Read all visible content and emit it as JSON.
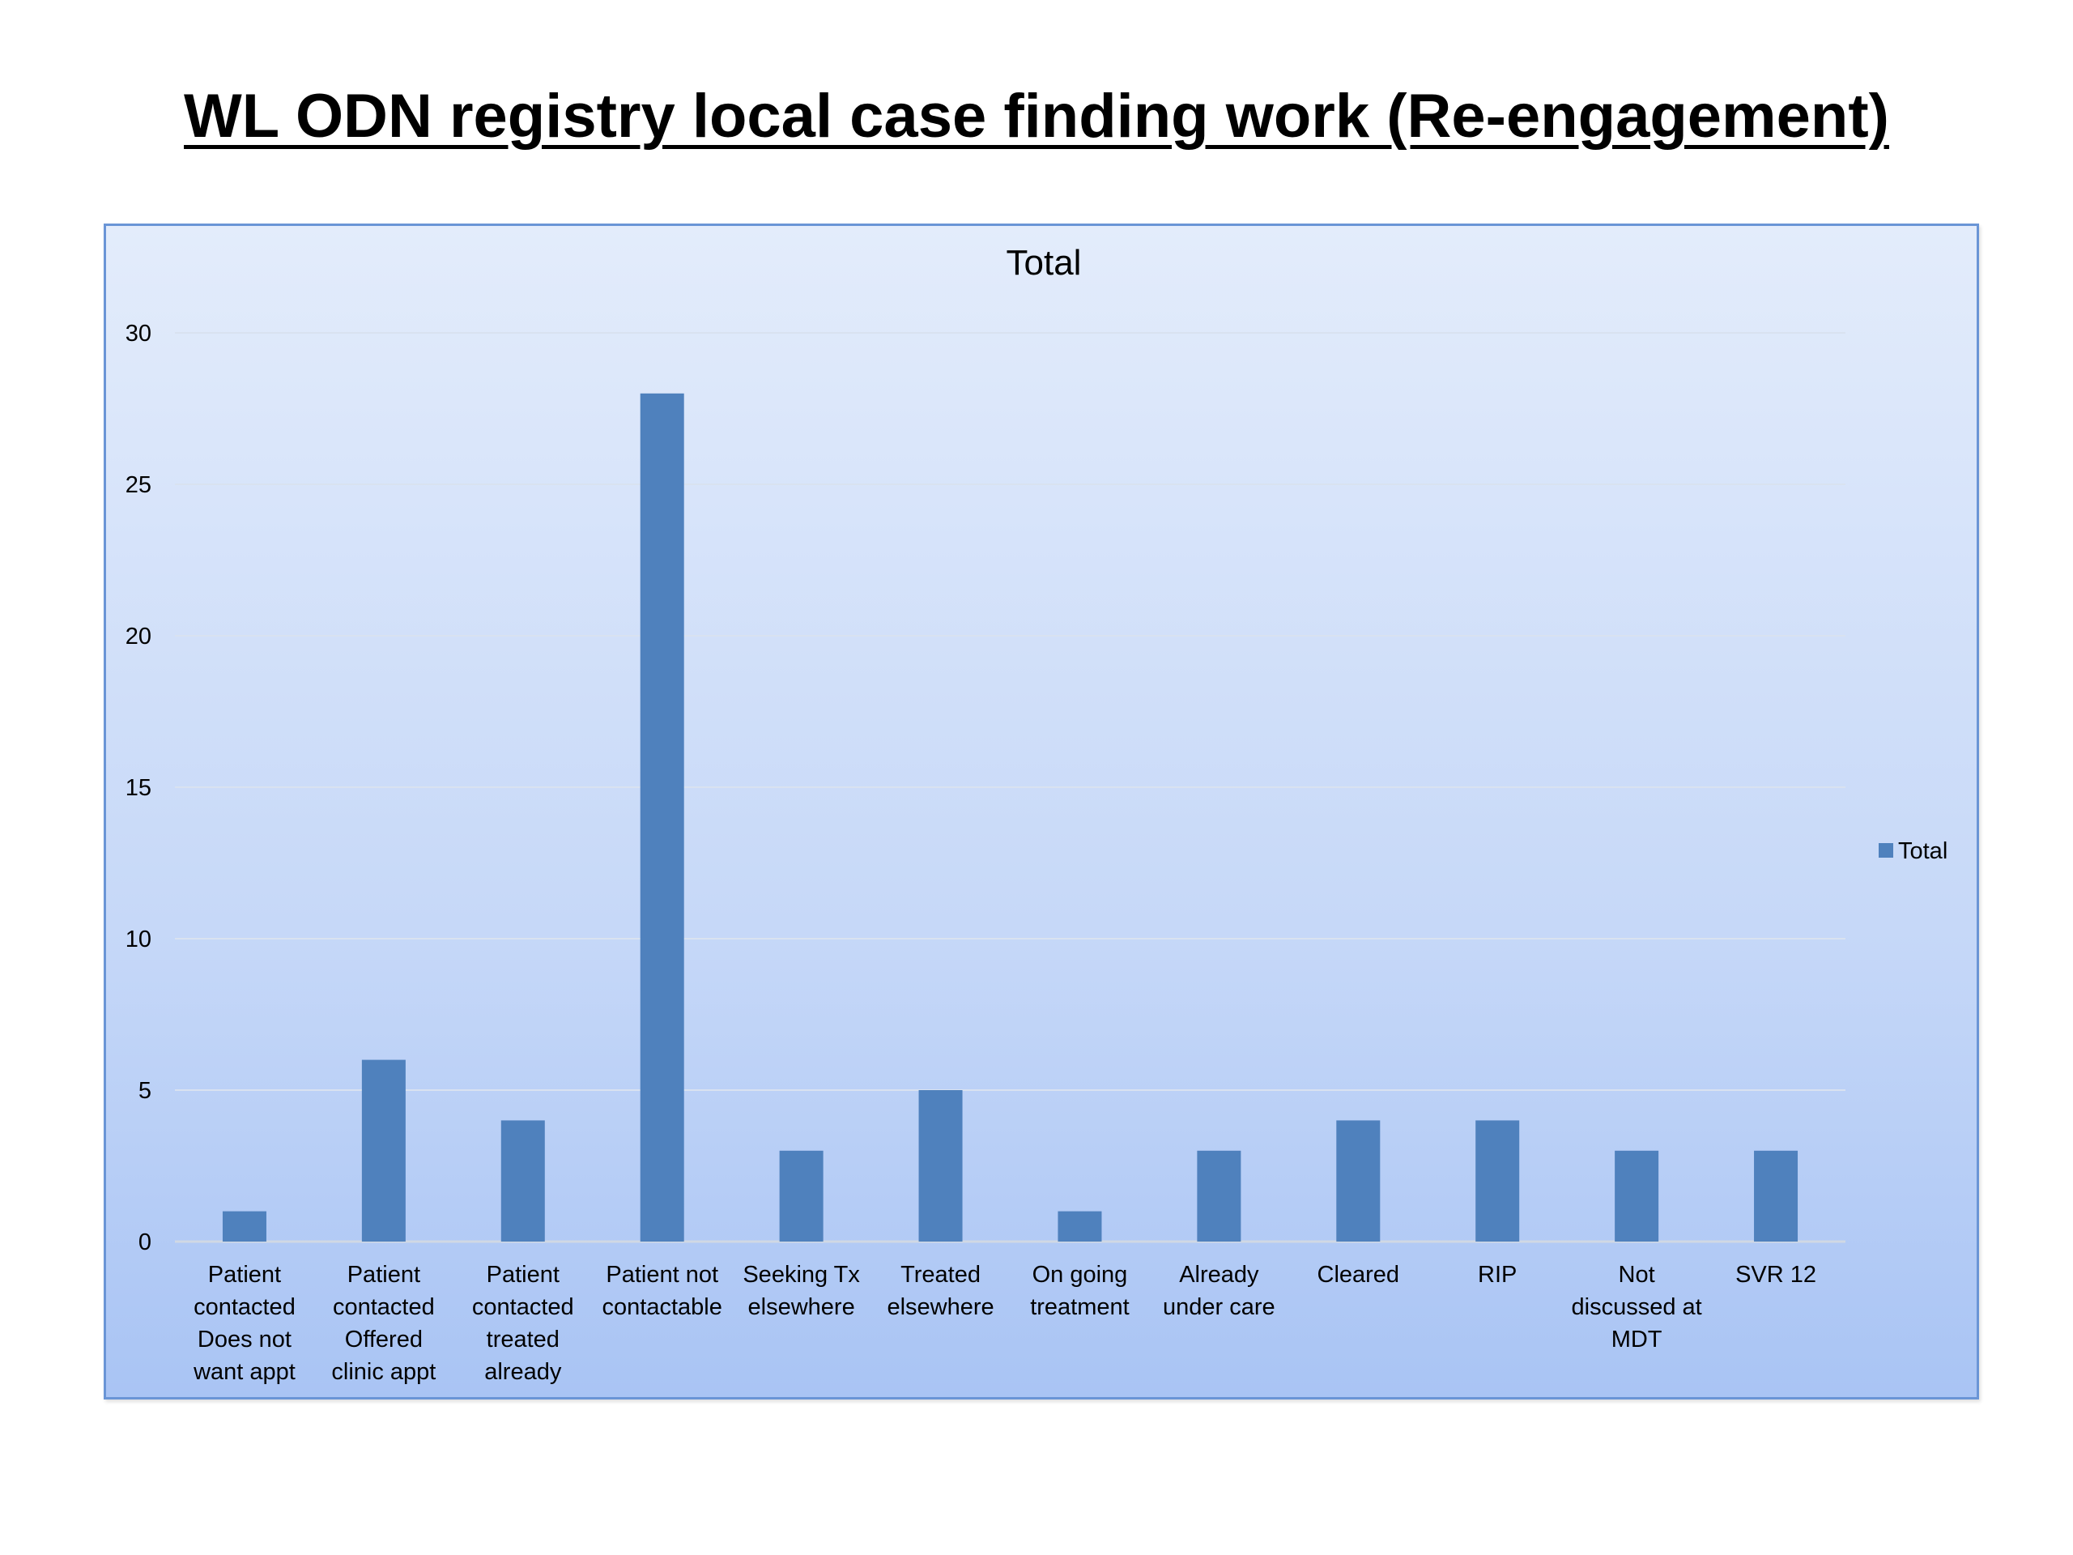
{
  "slide": {
    "title": "WL ODN registry local case finding work (Re-engagement)"
  },
  "colors": {
    "bar": "#4f81bd",
    "grid": "#d9e2f0",
    "frame_border": "#6a95d6"
  },
  "chart_data": {
    "type": "bar",
    "title": "Total",
    "xlabel": "",
    "ylabel": "",
    "categories": [
      [
        "Patient",
        "contacted",
        "Does not",
        "want appt"
      ],
      [
        "Patient",
        "contacted",
        "Offered",
        "clinic appt"
      ],
      [
        "Patient",
        "contacted",
        "treated",
        "already"
      ],
      [
        "Patient not",
        "contactable"
      ],
      [
        "Seeking Tx",
        "elsewhere"
      ],
      [
        "Treated",
        "elsewhere"
      ],
      [
        "On going",
        "treatment"
      ],
      [
        "Already",
        "under care"
      ],
      [
        "Cleared"
      ],
      [
        "RIP"
      ],
      [
        "Not",
        "discussed at",
        "MDT"
      ],
      [
        "SVR 12"
      ]
    ],
    "series": [
      {
        "name": "Total",
        "values": [
          1,
          6,
          4,
          28,
          3,
          5,
          1,
          3,
          4,
          4,
          3,
          3
        ]
      }
    ],
    "ylim": [
      0,
      30
    ],
    "yticks": [
      0,
      5,
      10,
      15,
      20,
      25,
      30
    ],
    "grid": true,
    "legend": {
      "position": "right",
      "entries": [
        "Total"
      ]
    }
  }
}
